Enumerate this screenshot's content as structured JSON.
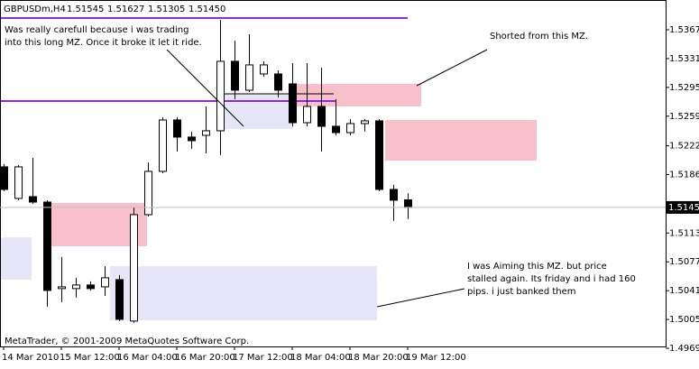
{
  "chart_data": {
    "type": "candlestick",
    "title": "GBPUSDm,H4",
    "ohlc_label": [
      "1.51545",
      "1.51627",
      "1.51305",
      "1.51450"
    ],
    "price_label": "1.51450",
    "copyright": "MetaTrader, © 2001-2009 MetaQuotes Software Corp.",
    "annotations": [
      "Was really carefull because i was trading",
      "into this long MZ. Once it broke it let it ride.",
      "Shorted from this MZ.",
      "I was Aiming this MZ. but price",
      "stalled again. Its friday and i had 160",
      "pips. i just banked them"
    ],
    "categories": [
      "14 Mar 2010",
      null,
      null,
      null,
      "15 Mar 12:00",
      null,
      null,
      null,
      "16 Mar 04:00",
      null,
      null,
      null,
      "16 Mar 20:00",
      null,
      null,
      null,
      "17 Mar 12:00",
      null,
      null,
      null,
      "18 Mar 04:00",
      null,
      null,
      null,
      "18 Mar 20:00",
      null,
      null,
      null,
      "19 Mar 12:00"
    ],
    "open": [
      1.51957,
      1.51563,
      1.51585,
      1.51517,
      1.50436,
      1.50436,
      1.50481,
      1.50458,
      1.50548,
      1.5003,
      1.5136,
      1.51901,
      1.52543,
      1.52329,
      1.52351,
      1.52408,
      1.53276,
      1.52915,
      1.53118,
      1.53118,
      1.52994,
      1.52509,
      1.52712,
      1.52464,
      1.52385,
      1.52498,
      1.52532,
      1.51675,
      1.51545
    ],
    "high": [
      1.51991,
      1.5198,
      1.5207,
      1.5154,
      1.5083,
      1.50571,
      1.50526,
      1.50717,
      1.50605,
      1.5145,
      1.52013,
      1.52577,
      1.52577,
      1.52397,
      1.52712,
      1.53794,
      1.53535,
      1.53614,
      1.53276,
      1.53163,
      1.53253,
      1.53253,
      1.53197,
      1.52802,
      1.52554,
      1.52554,
      1.52554,
      1.51732,
      1.51627
    ],
    "low": [
      1.51653,
      1.5154,
      1.51495,
      1.5021,
      1.50267,
      1.50323,
      1.50413,
      1.50345,
      1.5003,
      1.50007,
      1.51337,
      1.51878,
      1.52149,
      1.52182,
      1.52126,
      1.52104,
      1.52802,
      1.52892,
      1.53084,
      1.52825,
      1.52464,
      1.52464,
      1.52149,
      1.52351,
      1.52351,
      1.52397,
      1.51653,
      1.51281,
      1.51305
    ],
    "close": [
      1.51675,
      1.51957,
      1.51517,
      1.50413,
      1.50458,
      1.50481,
      1.50436,
      1.50571,
      1.50052,
      1.5136,
      1.51901,
      1.52543,
      1.52329,
      1.52284,
      1.52408,
      1.53276,
      1.52915,
      1.53231,
      1.53231,
      1.52915,
      1.52509,
      1.52712,
      1.52464,
      1.52385,
      1.52498,
      1.52532,
      1.51675,
      1.5154,
      1.5145
    ],
    "up_color": "#ffffff",
    "down_color": "#000000",
    "ylim": [
      1.49713,
      1.54042
    ],
    "yticks": [
      {
        "value": 1.5367,
        "label": "1.53670"
      },
      {
        "value": 1.5331,
        "label": "1.53310"
      },
      {
        "value": 1.5295,
        "label": "1.52950"
      },
      {
        "value": 1.5259,
        "label": "1.52590"
      },
      {
        "value": 1.5222,
        "label": "1.52220"
      },
      {
        "value": 1.5186,
        "label": "1.51860"
      },
      {
        "value": 1.5113,
        "label": "1.51130"
      },
      {
        "value": 1.5077,
        "label": "1.50770"
      },
      {
        "value": 1.5041,
        "label": "1.50410"
      },
      {
        "value": 1.5005,
        "label": "1.50050"
      },
      {
        "value": 1.4969,
        "label": "1.49690"
      }
    ],
    "grid": false
  }
}
